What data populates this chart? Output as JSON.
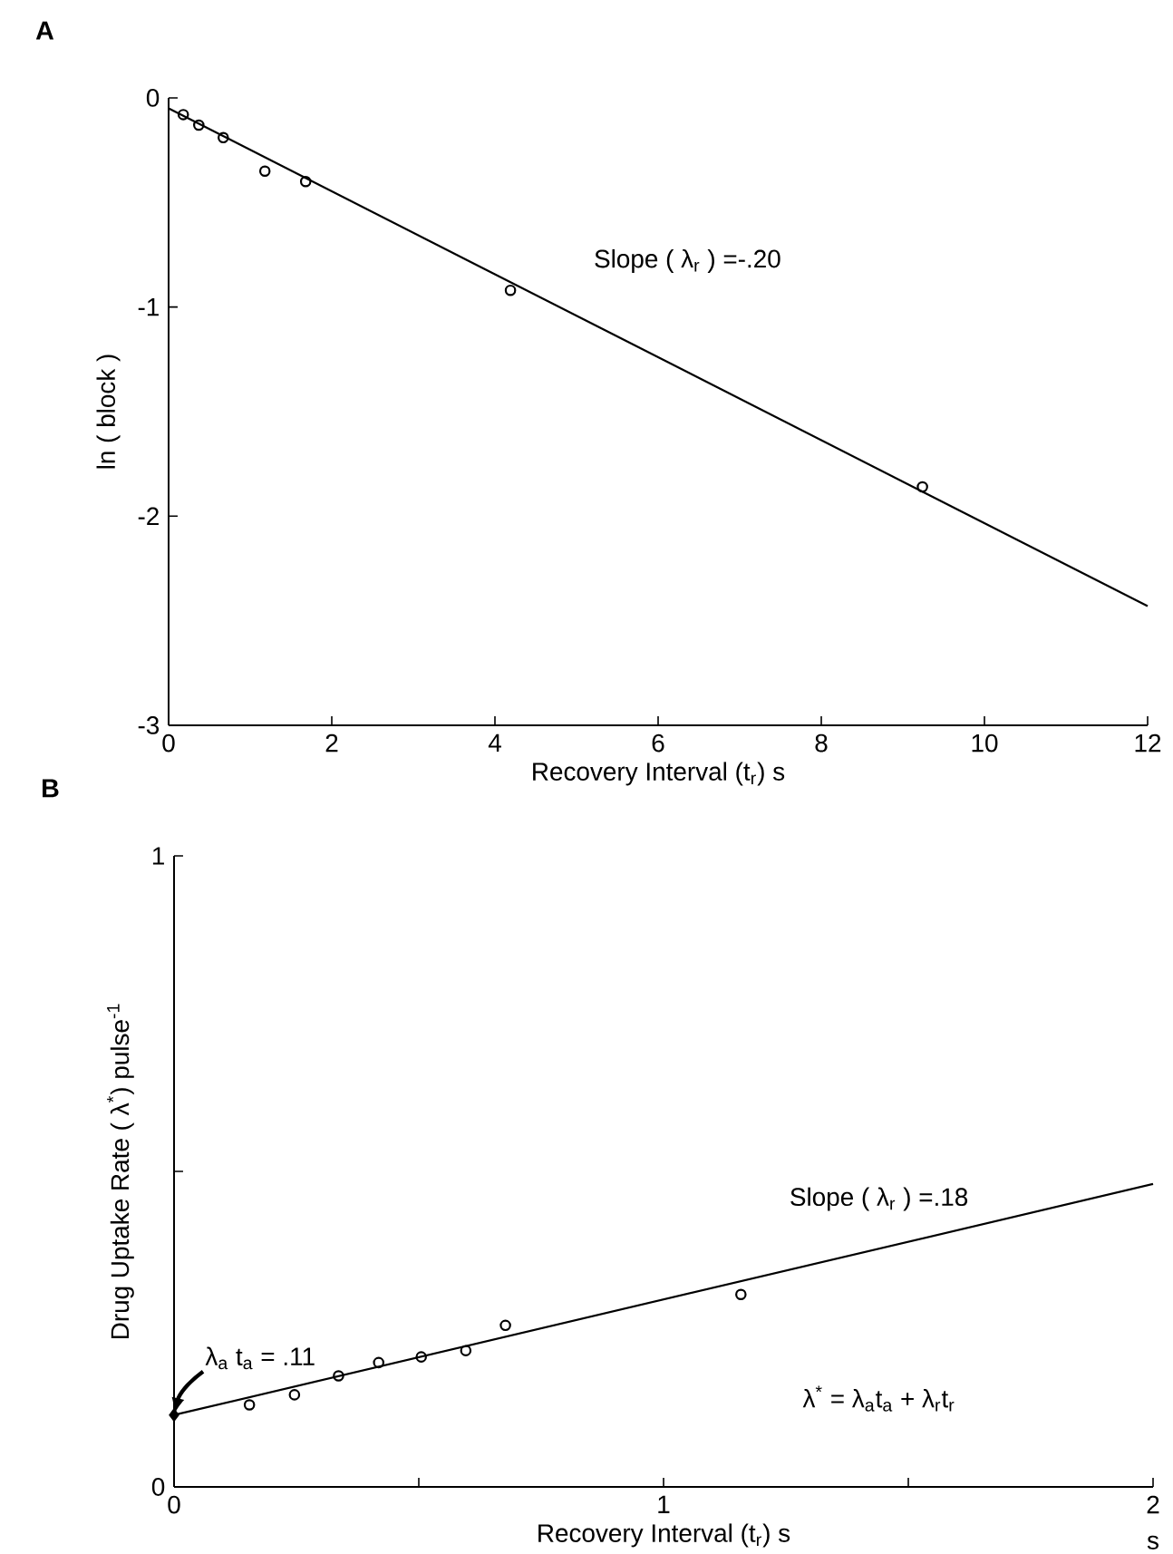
{
  "chart_data": [
    {
      "type": "scatter",
      "title": "A",
      "xlabel": "Recovery Interval (t$_{r}$) s",
      "ylabel": "ln ( block )",
      "xlim": [
        0,
        12
      ],
      "ylim": [
        -3,
        0
      ],
      "xticks": [
        0,
        2,
        4,
        6,
        8,
        10,
        12
      ],
      "yticks": [
        0,
        -1,
        -2,
        -3
      ],
      "series": [
        {
          "marker": "circle",
          "color": "#000000",
          "x": [
            0.18,
            0.37,
            0.67,
            1.18,
            1.68,
            4.19,
            9.24
          ],
          "values": [
            -0.08,
            -0.13,
            -0.19,
            -0.35,
            -0.4,
            -0.92,
            -1.86
          ]
        },
        {
          "type": "line",
          "color": "#000000",
          "x": [
            0,
            12
          ],
          "values": [
            -0.05,
            -2.43
          ]
        }
      ],
      "annotations": [
        "Slope ( λ$_{r}$ ) =-.20"
      ]
    },
    {
      "type": "scatter",
      "title": "B",
      "xlabel": "Recovery Interval (t$_{r}$) s",
      "ylabel": "Drug Uptake Rate ( λ$^{*}$) pulse$^{-1}$",
      "xlim": [
        0,
        2
      ],
      "ylim": [
        0,
        1
      ],
      "xticks": [
        0,
        {
          "value": 0.5,
          "label": null
        },
        1,
        {
          "value": 1.5,
          "label": null
        },
        2
      ],
      "yticks": [
        0,
        {
          "value": 0.5,
          "label": null
        },
        1
      ],
      "series": [
        {
          "marker": "circle",
          "color": "#000000",
          "x": [
            0.154,
            0.246,
            0.336,
            0.418,
            0.505,
            0.596,
            0.677,
            1.158
          ],
          "values": [
            0.13,
            0.146,
            0.176,
            0.197,
            0.206,
            0.216,
            0.256,
            0.305
          ]
        },
        {
          "type": "line",
          "color": "#000000",
          "x": [
            0,
            2
          ],
          "values": [
            0.114,
            0.48
          ]
        },
        {
          "marker": "diamond",
          "color": "#000000",
          "x": [
            0
          ],
          "values": [
            0.114
          ]
        }
      ],
      "annotations": [
        {
          "text": "λ$_{a}$ t$_{a}$ = .11",
          "x": 0,
          "y": 0.114
        },
        "Slope ( λ$_{r}$ ) =.18",
        "λ$^{*}$ = λ$_{a}$t$_{a}$ + λ$_{r}$t$_{r}$",
        "s"
      ]
    }
  ]
}
